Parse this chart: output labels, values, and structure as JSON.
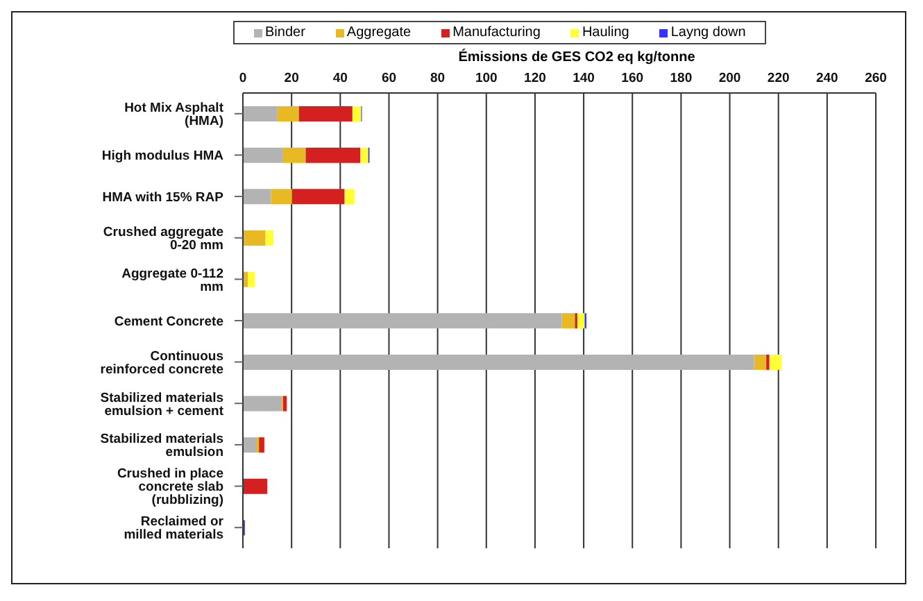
{
  "chart_data": {
    "type": "bar",
    "orientation": "horizontal",
    "stacked": true,
    "xlabel": "Émissions de GES  CO2 eq kg/tonne",
    "categories": [
      "Hot Mix Asphalt (HMA)",
      "High modulus HMA",
      "HMA with 15% RAP",
      "Crushed aggregate 0-20 mm",
      "Aggregate 0-112 mm",
      "Cement Concrete",
      "Continuous reinforced concrete",
      "Stabilized materials emulsion + cement",
      "Stabilized materials emulsion",
      "Crushed in place concrete slab (rubblizing)",
      "Reclaimed or milled materials"
    ],
    "series": [
      {
        "name": "Binder",
        "color": "#b3b3b3",
        "values": [
          14,
          16.5,
          11.5,
          null,
          null,
          131,
          210,
          16,
          5.7,
          null,
          null
        ]
      },
      {
        "name": "Aggregate",
        "color": "#e8b923",
        "values": [
          9,
          9.3,
          8.7,
          9.3,
          2,
          5.4,
          5,
          0.5,
          0.9,
          null,
          null
        ]
      },
      {
        "name": "Manufacturing",
        "color": "#d42020",
        "values": [
          22,
          22.4,
          21.6,
          null,
          null,
          1,
          1.3,
          1.5,
          2.2,
          10,
          null
        ]
      },
      {
        "name": "Hauling",
        "color": "#ffff33",
        "values": [
          3.6,
          3.3,
          4,
          3.2,
          2.8,
          3,
          5,
          null,
          null,
          null,
          null
        ]
      },
      {
        "name": "Layng down",
        "color": "#3333ff",
        "values": [
          0.3,
          0.5,
          null,
          null,
          null,
          0.7,
          null,
          null,
          null,
          null,
          0.8
        ]
      }
    ],
    "xlim": [
      0,
      260
    ],
    "xticks": [
      0,
      20,
      40,
      60,
      80,
      100,
      120,
      140,
      160,
      180,
      200,
      220,
      240,
      260
    ],
    "grid": "x",
    "legend": "top"
  }
}
